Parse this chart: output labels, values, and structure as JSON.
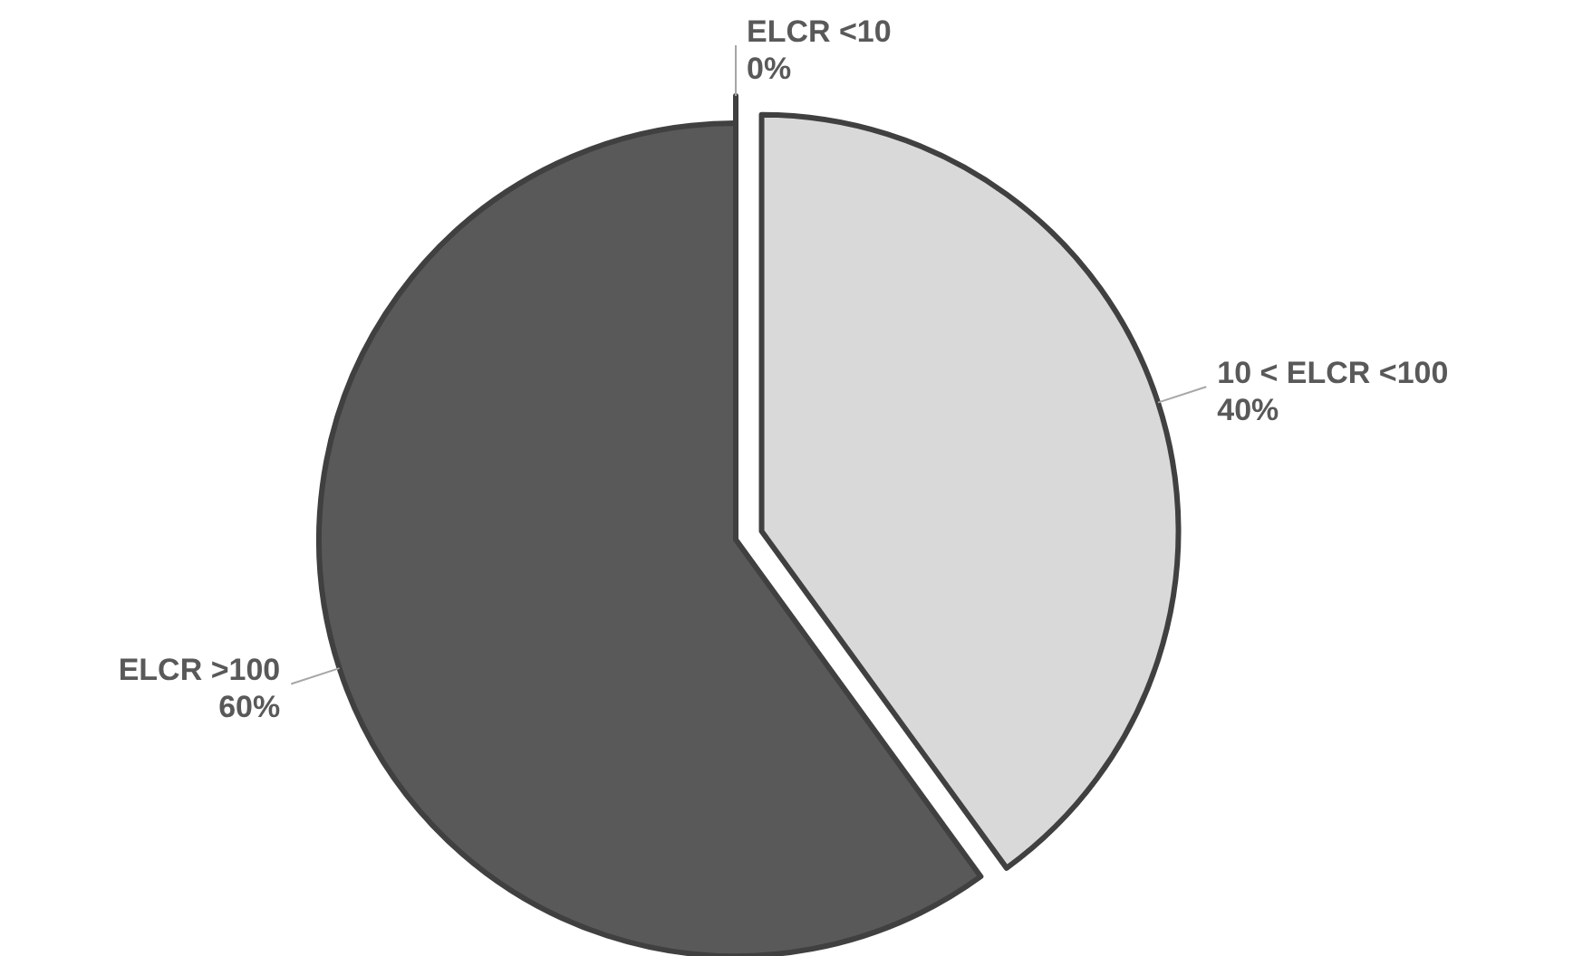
{
  "chart_data": {
    "type": "pie",
    "categories": [
      "ELCR <10",
      "10 < ELCR <100",
      "ELCR >100"
    ],
    "values": [
      0,
      40,
      60
    ],
    "colors": [
      "#d9d9d9",
      "#d9d9d9",
      "#595959"
    ],
    "value_labels": [
      "0%",
      "40%",
      "60%"
    ],
    "legend": false
  }
}
